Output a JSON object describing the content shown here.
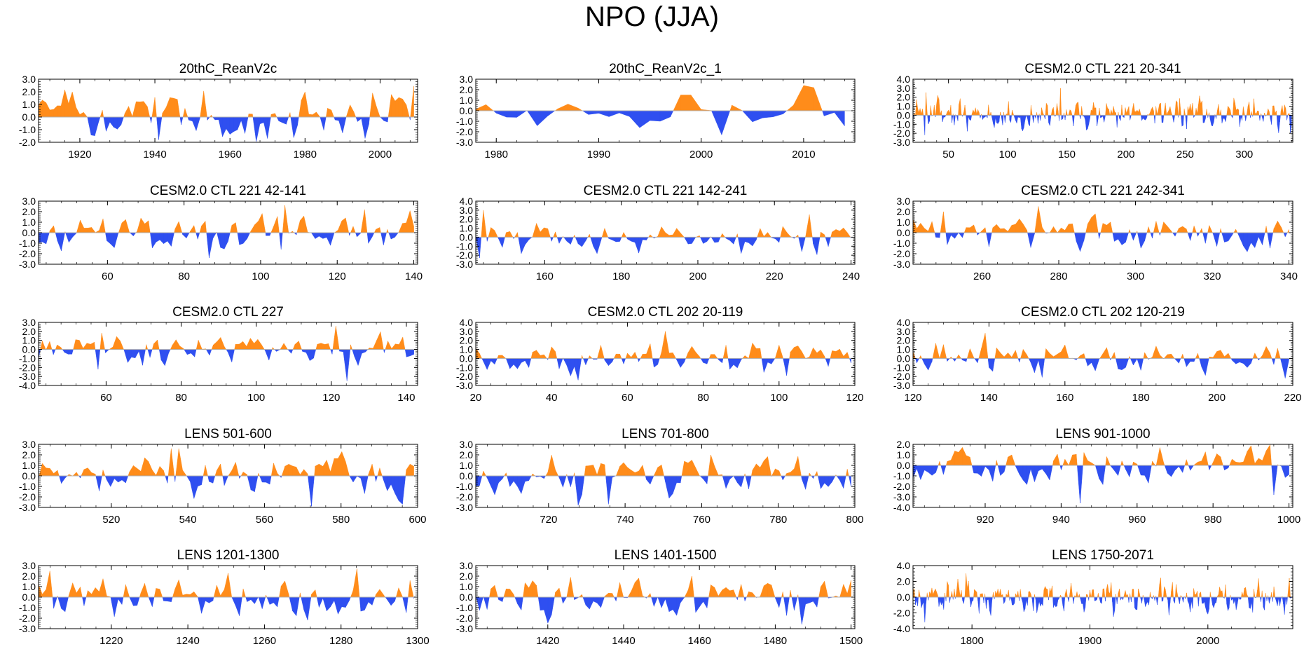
{
  "title": "NPO (JJA)",
  "colors": {
    "positive": "#ff8c1a",
    "negative": "#2f4ff0",
    "axis": "#000000"
  },
  "chart_data": [
    {
      "type": "area",
      "title": "20thC_ReanV2c",
      "xlim": [
        1909,
        2010
      ],
      "ylim": [
        -2,
        3
      ],
      "yticks": [
        "3.0",
        "2.0",
        "1.0",
        "0.0",
        "-1.0",
        "-2.0"
      ],
      "xticks": [
        1920,
        1940,
        1960,
        1980,
        2000
      ],
      "n": 101,
      "amp": 1.1,
      "seed": 3,
      "spikes": [
        [
          1941,
          -1.8
        ],
        [
          1980,
          2.0
        ],
        [
          1998,
          1.9
        ],
        [
          1970,
          -1.7
        ],
        [
          1918,
          2.0
        ]
      ]
    },
    {
      "type": "area",
      "title": "20thC_ReanV2c_1",
      "xlim": [
        1978,
        2015
      ],
      "ylim": [
        -3,
        3
      ],
      "yticks": [
        "3.0",
        "2.0",
        "1.0",
        "0.0",
        "-1.0",
        "-2.0",
        "-3.0"
      ],
      "xticks": [
        1980,
        1990,
        2000,
        2010
      ],
      "n": 37,
      "amp": 0.8,
      "seed": 7,
      "spikes": [
        [
          2002,
          -2.3
        ],
        [
          2010,
          2.4
        ],
        [
          2011,
          2.2
        ],
        [
          1998,
          1.5
        ],
        [
          1999,
          1.5
        ]
      ]
    },
    {
      "type": "area",
      "title": "CESM2.0 CTL 221 20-341",
      "xlim": [
        20,
        341
      ],
      "ylim": [
        -3,
        4
      ],
      "yticks": [
        "4.0",
        "3.0",
        "2.0",
        "1.0",
        "0.0",
        "-1.0",
        "-2.0",
        "-3.0"
      ],
      "xticks": [
        50,
        100,
        150,
        200,
        250,
        300
      ],
      "n": 322,
      "amp": 1.0,
      "seed": 11,
      "spikes": [
        [
          145,
          3.0
        ],
        [
          30,
          -2.2
        ]
      ]
    },
    {
      "type": "area",
      "title": "CESM2.0 CTL 221 42-141",
      "xlim": [
        42,
        141
      ],
      "ylim": [
        -3,
        3
      ],
      "yticks": [
        "3.0",
        "2.0",
        "1.0",
        "0.0",
        "-1.0",
        "-2.0",
        "-3.0"
      ],
      "xticks": [
        60,
        80,
        100,
        120,
        140
      ],
      "n": 100,
      "amp": 1.1,
      "seed": 13,
      "spikes": [
        [
          87,
          -2.4
        ],
        [
          106,
          2.6
        ],
        [
          127,
          2.2
        ]
      ]
    },
    {
      "type": "area",
      "title": "CESM2.0 CTL 221 142-241",
      "xlim": [
        142,
        241
      ],
      "ylim": [
        -3,
        4
      ],
      "yticks": [
        "4.0",
        "3.0",
        "2.0",
        "1.0",
        "0.0",
        "-1.0",
        "-2.0",
        "-3.0"
      ],
      "xticks": [
        160,
        180,
        200,
        220,
        240
      ],
      "n": 100,
      "amp": 1.0,
      "seed": 17,
      "spikes": [
        [
          144,
          3.0
        ],
        [
          143,
          -2.3
        ],
        [
          229,
          2.5
        ]
      ]
    },
    {
      "type": "area",
      "title": "CESM2.0 CTL 221 242-341",
      "xlim": [
        242,
        341
      ],
      "ylim": [
        -3,
        3
      ],
      "yticks": [
        "3.0",
        "2.0",
        "1.0",
        "0.0",
        "-1.0",
        "-2.0",
        "-3.0"
      ],
      "xticks": [
        260,
        280,
        300,
        320,
        340
      ],
      "n": 100,
      "amp": 1.0,
      "seed": 19,
      "spikes": [
        [
          275,
          2.5
        ],
        [
          250,
          2.0
        ],
        [
          290,
          1.8
        ]
      ]
    },
    {
      "type": "area",
      "title": "CESM2.0 CTL 227",
      "xlim": [
        42,
        143
      ],
      "ylim": [
        -4,
        3
      ],
      "yticks": [
        "3.0",
        "2.0",
        "1.0",
        "0.0",
        "-1.0",
        "-2.0",
        "-3.0",
        "-4.0"
      ],
      "xticks": [
        60,
        80,
        100,
        120,
        140
      ],
      "n": 102,
      "amp": 1.0,
      "seed": 23,
      "spikes": [
        [
          124,
          -3.5
        ],
        [
          121,
          2.6
        ],
        [
          58,
          -2.2
        ]
      ]
    },
    {
      "type": "area",
      "title": "CESM2.0 CTL 202 20-119",
      "xlim": [
        20,
        120
      ],
      "ylim": [
        -3,
        4
      ],
      "yticks": [
        "4.0",
        "3.0",
        "2.0",
        "1.0",
        "0.0",
        "-1.0",
        "-2.0",
        "-3.0"
      ],
      "xticks": [
        20,
        40,
        60,
        80,
        100,
        120
      ],
      "n": 100,
      "amp": 1.0,
      "seed": 29,
      "spikes": [
        [
          70,
          3.0
        ],
        [
          47,
          -2.4
        ],
        [
          102,
          -1.9
        ]
      ]
    },
    {
      "type": "area",
      "title": "CESM2.0 CTL 202 120-219",
      "xlim": [
        120,
        220
      ],
      "ylim": [
        -3,
        4
      ],
      "yticks": [
        "4.0",
        "3.0",
        "2.0",
        "1.0",
        "0.0",
        "-1.0",
        "-2.0",
        "-3.0"
      ],
      "xticks": [
        120,
        140,
        160,
        180,
        200,
        220
      ],
      "n": 100,
      "amp": 1.0,
      "seed": 31,
      "spikes": [
        [
          139,
          2.8
        ],
        [
          218,
          -2.2
        ],
        [
          154,
          -2.1
        ]
      ]
    },
    {
      "type": "area",
      "title": "LENS 501-600",
      "xlim": [
        501,
        600
      ],
      "ylim": [
        -3,
        3
      ],
      "yticks": [
        "3.0",
        "2.0",
        "1.0",
        "0.0",
        "-1.0",
        "-2.0",
        "-3.0"
      ],
      "xticks": [
        520,
        540,
        560,
        580,
        600
      ],
      "n": 100,
      "amp": 1.0,
      "seed": 37,
      "spikes": [
        [
          536,
          2.6
        ],
        [
          538,
          2.6
        ],
        [
          572,
          -2.9
        ],
        [
          596,
          -2.7
        ]
      ]
    },
    {
      "type": "area",
      "title": "LENS 701-800",
      "xlim": [
        701,
        800
      ],
      "ylim": [
        -3,
        3
      ],
      "yticks": [
        "3.0",
        "2.0",
        "1.0",
        "0.0",
        "-1.0",
        "-2.0",
        "-3.0"
      ],
      "xticks": [
        720,
        740,
        760,
        780,
        800
      ],
      "n": 100,
      "amp": 1.0,
      "seed": 41,
      "spikes": [
        [
          728,
          -2.8
        ],
        [
          736,
          -2.7
        ],
        [
          762,
          2.0
        ]
      ]
    },
    {
      "type": "area",
      "title": "LENS 901-1000",
      "xlim": [
        901,
        1001
      ],
      "ylim": [
        -4,
        2
      ],
      "yticks": [
        "2.0",
        "1.0",
        "0.0",
        "-1.0",
        "-2.0",
        "-3.0",
        "-4.0"
      ],
      "xticks": [
        920,
        940,
        960,
        980,
        1000
      ],
      "n": 100,
      "amp": 0.9,
      "seed": 43,
      "spikes": [
        [
          945,
          -3.6
        ],
        [
          966,
          1.7
        ],
        [
          996,
          -2.8
        ]
      ]
    },
    {
      "type": "area",
      "title": "LENS 1201-1300",
      "xlim": [
        1201,
        1300
      ],
      "ylim": [
        -3,
        3
      ],
      "yticks": [
        "3.0",
        "2.0",
        "1.0",
        "0.0",
        "-1.0",
        "-2.0",
        "-3.0"
      ],
      "xticks": [
        1220,
        1240,
        1260,
        1280,
        1300
      ],
      "n": 100,
      "amp": 1.0,
      "seed": 47,
      "spikes": [
        [
          1204,
          2.5
        ],
        [
          1284,
          2.7
        ],
        [
          1271,
          -2.2
        ]
      ]
    },
    {
      "type": "area",
      "title": "LENS 1401-1500",
      "xlim": [
        1401,
        1501
      ],
      "ylim": [
        -3,
        3
      ],
      "yticks": [
        "3.0",
        "2.0",
        "1.0",
        "0.0",
        "-1.0",
        "-2.0",
        "-3.0"
      ],
      "xticks": [
        1420,
        1440,
        1460,
        1480,
        1500
      ],
      "n": 100,
      "amp": 1.0,
      "seed": 53,
      "spikes": [
        [
          1487,
          -2.6
        ],
        [
          1458,
          2.0
        ],
        [
          1426,
          1.9
        ]
      ]
    },
    {
      "type": "area",
      "title": "LENS 1750-2071",
      "xlim": [
        1750,
        2072
      ],
      "ylim": [
        -4,
        4
      ],
      "yticks": [
        "4.0",
        "2.0",
        "0.0",
        "-2.0",
        "-4.0"
      ],
      "xticks": [
        1800,
        1900,
        2000
      ],
      "n": 322,
      "amp": 1.1,
      "seed": 59,
      "spikes": [
        [
          1760,
          -3.2
        ],
        [
          1795,
          3.0
        ],
        [
          2065,
          -2.2
        ]
      ]
    }
  ]
}
